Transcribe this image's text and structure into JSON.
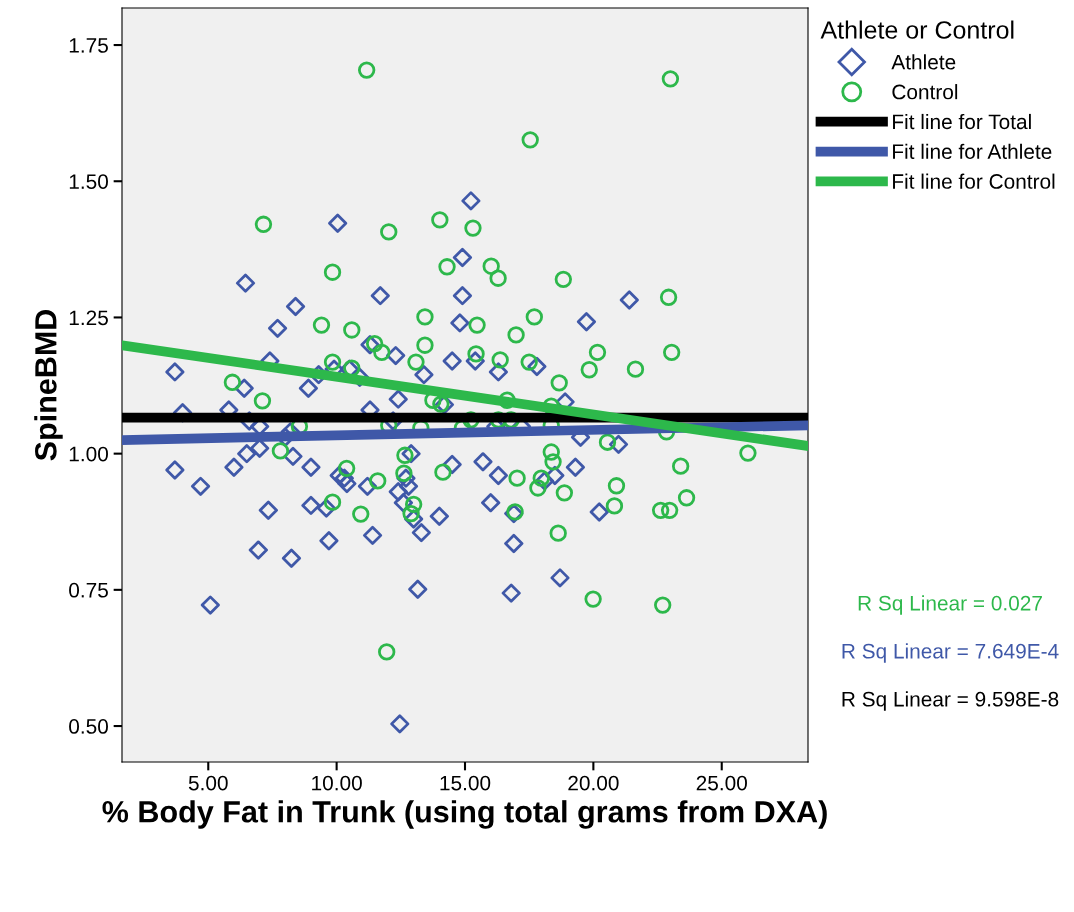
{
  "chart_data": {
    "type": "scatter",
    "xlabel": "% Body Fat in Trunk (using total grams from DXA)",
    "ylabel": "SpineBMD",
    "legend_title": "Athlete or Control",
    "legend": "top right",
    "grid": false,
    "xlim": [
      1.64,
      28.36
    ],
    "ylim": [
      0.434,
      1.818
    ],
    "xticks": [
      {
        "value": 5,
        "label": "5.00"
      },
      {
        "value": 10,
        "label": "10.00"
      },
      {
        "value": 15,
        "label": "15.00"
      },
      {
        "value": 20,
        "label": "20.00"
      },
      {
        "value": 25,
        "label": "25.00"
      }
    ],
    "yticks": [
      {
        "value": 0.5,
        "label": "0.50"
      },
      {
        "value": 0.75,
        "label": "0.75"
      },
      {
        "value": 1.0,
        "label": "1.00"
      },
      {
        "value": 1.25,
        "label": "1.25"
      },
      {
        "value": 1.5,
        "label": "1.50"
      },
      {
        "value": 1.75,
        "label": "1.75"
      }
    ],
    "series": [
      {
        "name": "Athlete",
        "marker": "diamond",
        "color": "#3f58a8",
        "x": [
          3.7,
          3.7,
          4.0,
          4.7,
          5.08,
          5.8,
          6.0,
          6.45,
          6.4,
          6.5,
          6.6,
          6.95,
          7.0,
          7.0,
          7.34,
          7.4,
          7.7,
          8.0,
          8.2,
          8.3,
          8.4,
          8.24,
          8.9,
          9.0,
          9.0,
          9.3,
          9.6,
          9.7,
          9.9,
          10.04,
          10.1,
          10.3,
          10.4,
          10.5,
          10.9,
          11.2,
          11.3,
          11.3,
          11.4,
          11.7,
          12.2,
          12.3,
          12.4,
          12.4,
          12.46,
          12.6,
          12.7,
          12.8,
          12.9,
          13.0,
          13.16,
          13.3,
          13.4,
          14.0,
          14.2,
          14.5,
          14.5,
          14.8,
          14.9,
          14.9,
          15.23,
          15.4,
          15.7,
          16.0,
          16.2,
          16.3,
          16.3,
          16.8,
          16.9,
          16.9,
          17.2,
          17.8,
          18.1,
          18.5,
          18.7,
          18.9,
          19.5,
          19.3,
          19.73,
          20.23,
          20.98,
          21.4
        ],
        "values": [
          1.15,
          0.97,
          1.075,
          0.94,
          0.722,
          1.08,
          0.975,
          1.313,
          1.12,
          1.0,
          1.06,
          0.823,
          1.05,
          1.01,
          0.896,
          1.17,
          1.23,
          1.03,
          1.04,
          0.995,
          1.27,
          0.808,
          1.12,
          0.975,
          0.905,
          1.145,
          0.9,
          0.84,
          1.155,
          1.423,
          0.96,
          0.955,
          0.945,
          1.155,
          1.14,
          0.94,
          1.08,
          1.2,
          0.85,
          1.29,
          1.06,
          1.18,
          0.93,
          1.1,
          0.504,
          0.91,
          0.955,
          0.94,
          1.0,
          0.88,
          0.751,
          0.855,
          1.145,
          0.885,
          1.09,
          1.17,
          0.98,
          1.24,
          1.29,
          1.36,
          1.464,
          1.17,
          0.985,
          0.91,
          1.05,
          1.15,
          0.96,
          0.744,
          0.835,
          0.89,
          1.05,
          1.16,
          0.95,
          0.96,
          0.772,
          1.095,
          1.03,
          0.975,
          1.242,
          0.893,
          1.017,
          1.282
        ]
      },
      {
        "name": "Control",
        "marker": "circle",
        "color": "#2db84b",
        "x": [
          11.17,
          23.0,
          17.54,
          7.15,
          12.03,
          14.02,
          15.31,
          14.3,
          16.02,
          16.29,
          18.83,
          9.84,
          9.41,
          10.59,
          13.44,
          15.47,
          17.7,
          22.93,
          11.48,
          13.44,
          16.99,
          11.76,
          20.16,
          21.64,
          23.05,
          9.84,
          10.59,
          13.09,
          15.43,
          16.37,
          17.5,
          5.94,
          7.11,
          18.67,
          19.84,
          14.06,
          13.75,
          16.64,
          16.8,
          16.3,
          18.36,
          15.23,
          12.03,
          13.28,
          14.9,
          8.55,
          7.81,
          26.02,
          22.85,
          18.36,
          18.36,
          18.43,
          18.87,
          20.55,
          20.9,
          23.4,
          23.63,
          20.82,
          22.62,
          22.97,
          18.63,
          19.99,
          22.7,
          11.95,
          14.14,
          12.66,
          12.62,
          9.84,
          10.39,
          10.94,
          11.6,
          13.0,
          12.9,
          16.95,
          17.97,
          17.84,
          17.03
        ],
        "values": [
          1.704,
          1.688,
          1.576,
          1.421,
          1.407,
          1.429,
          1.414,
          1.343,
          1.344,
          1.322,
          1.32,
          1.333,
          1.236,
          1.227,
          1.251,
          1.236,
          1.251,
          1.287,
          1.202,
          1.199,
          1.218,
          1.186,
          1.186,
          1.155,
          1.186,
          1.168,
          1.157,
          1.168,
          1.183,
          1.172,
          1.168,
          1.131,
          1.097,
          1.13,
          1.154,
          1.091,
          1.098,
          1.098,
          1.062,
          1.062,
          1.087,
          1.062,
          1.052,
          1.047,
          1.047,
          1.05,
          1.005,
          1.001,
          1.04,
          1.052,
          1.003,
          0.985,
          0.928,
          1.021,
          0.941,
          0.977,
          0.919,
          0.904,
          0.896,
          0.896,
          0.854,
          0.733,
          0.722,
          0.636,
          0.966,
          0.997,
          0.964,
          0.911,
          0.973,
          0.889,
          0.95,
          0.907,
          0.89,
          0.893,
          0.955,
          0.937,
          0.955
        ]
      },
      {
        "name": "Fit line for Total",
        "type": "line",
        "color": "#000000",
        "x": [
          1.64,
          28.36
        ],
        "values": [
          1.066,
          1.066
        ]
      },
      {
        "name": "Fit line for Athlete",
        "type": "line",
        "color": "#3f58a8",
        "x": [
          1.64,
          28.36
        ],
        "values": [
          1.025,
          1.052
        ]
      },
      {
        "name": "Fit line for Control",
        "type": "line",
        "color": "#2db84b",
        "x": [
          1.64,
          28.36
        ],
        "values": [
          1.199,
          1.014
        ]
      }
    ],
    "annotations": [
      "R Sq Linear = 0.027",
      "R Sq Linear = 7.649E-4",
      "R Sq Linear = 9.598E-8"
    ]
  }
}
